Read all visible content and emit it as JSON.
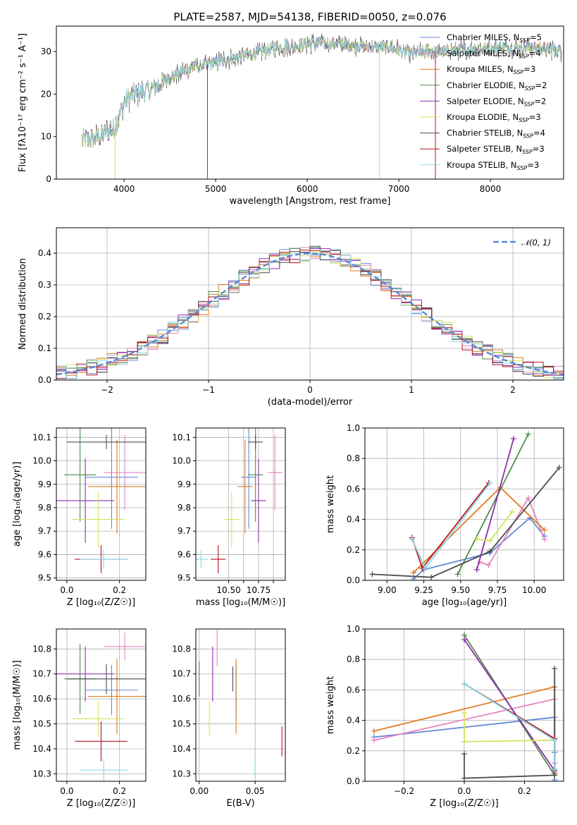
{
  "colors": [
    "#6289d6",
    "#e685c0",
    "#e07b20",
    "#4f8c4f",
    "#8f2dad",
    "#d2e25b",
    "#4d4d4d",
    "#b8141b",
    "#8ad7e6"
  ],
  "panels": {
    "spectrum": {
      "title": "PLATE=2587, MJD=54138, FIBERID=0050, z=0.076",
      "xlabel": "wavelength [Angstrom, rest frame]",
      "ylabel": "Flux [fλ10⁻¹⁷ erg cm⁻² s⁻¹ A⁻¹]",
      "xlim": [
        3260,
        8800
      ],
      "ylim": [
        0,
        36
      ],
      "xticks": [
        4000,
        5000,
        6000,
        7000,
        8000
      ],
      "yticks": [
        0,
        10,
        20,
        30
      ],
      "legend": [
        {
          "base": "Chabrier MILES, N",
          "sub": "SSP",
          "tail": "=5"
        },
        {
          "base": "Salpeter MILES, N",
          "sub": "SSP",
          "tail": "=4"
        },
        {
          "base": "Kroupa MILES, N",
          "sub": "SSP",
          "tail": "=3"
        },
        {
          "base": "Chabrier ELODIE, N",
          "sub": "SSP",
          "tail": "=2"
        },
        {
          "base": "Salpeter ELODIE, N",
          "sub": "SSP",
          "tail": "=2"
        },
        {
          "base": "Kroupa ELODIE, N",
          "sub": "SSP",
          "tail": "=3"
        },
        {
          "base": "Chabrier STELIB, N",
          "sub": "SSP",
          "tail": "=4"
        },
        {
          "base": "Salpeter STELIB, N",
          "sub": "SSP",
          "tail": "=3"
        },
        {
          "base": "Kroupa STELIB, N",
          "sub": "SSP",
          "tail": "=3"
        }
      ],
      "continuum": [
        [
          3540,
          9.5
        ],
        [
          3700,
          9.5
        ],
        [
          3800,
          11
        ],
        [
          3900,
          12
        ],
        [
          4000,
          18
        ],
        [
          4100,
          20
        ],
        [
          4300,
          21
        ],
        [
          4500,
          24
        ],
        [
          4700,
          26
        ],
        [
          4900,
          27
        ],
        [
          5100,
          28
        ],
        [
          5300,
          29
        ],
        [
          5500,
          30
        ],
        [
          5700,
          31
        ],
        [
          5900,
          31.5
        ],
        [
          6100,
          32
        ],
        [
          6300,
          32
        ],
        [
          6500,
          31.5
        ],
        [
          6700,
          31
        ],
        [
          6900,
          31
        ],
        [
          7100,
          29.5
        ],
        [
          7300,
          30
        ],
        [
          7500,
          30
        ],
        [
          7700,
          30.5
        ],
        [
          7900,
          30.5
        ],
        [
          8100,
          31
        ],
        [
          8300,
          31
        ],
        [
          8500,
          30.8
        ],
        [
          8700,
          30.5
        ],
        [
          8770,
          30
        ]
      ]
    },
    "histogram": {
      "xlabel": "(data-model)/error",
      "ylabel": "Normed distribution",
      "xlim": [
        -2.5,
        2.5
      ],
      "ylim": [
        0,
        0.48
      ],
      "xticks": [
        -2,
        -1,
        0,
        1,
        2
      ],
      "yticks": [
        0.0,
        0.1,
        0.2,
        0.3,
        0.4
      ],
      "bin_width": 0.1,
      "legend": "𝒩(0, 1)"
    },
    "z_age": {
      "xlabel": "Z [log₁₀(Z/Z☉)]",
      "ylabel": "age  [log₁₀(age/yr)]",
      "xlim": [
        -0.04,
        0.3
      ],
      "ylim": [
        9.49,
        10.14
      ],
      "xticks": [
        0.0,
        0.2
      ],
      "yticks": [
        9.5,
        9.6,
        9.7,
        9.8,
        9.9,
        10.0,
        10.1
      ]
    },
    "mass_age": {
      "xlabel": "mass [log₁₀(M/M☉)]",
      "ylabel": "",
      "xlim": [
        10.28,
        10.88
      ],
      "ylim": [
        9.49,
        10.14
      ],
      "xticks": [
        10.5,
        10.6,
        10.7,
        10.8
      ],
      "xtick_labels": [
        "10.50",
        "",
        "10.75",
        ""
      ],
      "yticks": [
        9.5,
        9.6,
        9.7,
        9.8,
        9.9,
        10.0,
        10.1
      ]
    },
    "age_weight": {
      "xlabel": "age  [log₁₀(age/yr)]",
      "ylabel": "mass weight",
      "xlim": [
        8.85,
        10.2
      ],
      "ylim": [
        0,
        1
      ],
      "xticks": [
        9.0,
        9.25,
        9.5,
        9.75,
        10.0
      ],
      "yticks": [
        0.0,
        0.2,
        0.4,
        0.6,
        0.8,
        1.0
      ]
    },
    "z_mass": {
      "xlabel": "Z [log₁₀(Z/Z☉)]",
      "ylabel": "mass [log₁₀(M/M☉)]",
      "xlim": [
        -0.04,
        0.3
      ],
      "ylim": [
        10.27,
        10.88
      ],
      "xticks": [
        0.0,
        0.2
      ],
      "yticks": [
        10.3,
        10.4,
        10.5,
        10.6,
        10.7,
        10.8
      ]
    },
    "ebv_mass": {
      "xlabel": "E(B-V)",
      "ylabel": "",
      "xlim": [
        -0.003,
        0.077
      ],
      "ylim": [
        10.27,
        10.88
      ],
      "xticks": [
        0.0,
        0.05
      ],
      "yticks": [
        10.3,
        10.4,
        10.5,
        10.6,
        10.7,
        10.8
      ]
    },
    "z_weight": {
      "xlabel": "Z [log₁₀(Z/Z☉)]",
      "ylabel": "mass weight",
      "xlim": [
        -0.33,
        0.33
      ],
      "ylim": [
        0,
        1
      ],
      "xticks": [
        -0.2,
        0.0,
        0.2
      ],
      "yticks": [
        0.0,
        0.2,
        0.4,
        0.6,
        0.8,
        1.0
      ]
    }
  },
  "chart_data": [
    {
      "type": "line",
      "panel": "spectrum",
      "title": "PLATE=2587, MJD=54138, FIBERID=0050, z=0.076",
      "xlabel": "wavelength [Angstrom, rest frame]",
      "series_names": [
        "Chabrier MILES, NSSP=5",
        "Salpeter MILES, NSSP=4",
        "Kroupa MILES, NSSP=3",
        "Chabrier ELODIE, NSSP=2",
        "Salpeter ELODIE, NSSP=2",
        "Kroupa ELODIE, NSSP=3",
        "Chabrier STELIB, NSSP=4",
        "Salpeter STELIB, NSSP=3",
        "Kroupa STELIB, NSSP=3"
      ]
    },
    {
      "type": "bar",
      "panel": "histogram",
      "xlabel": "(data-model)/error",
      "ylabel": "Normed distribution"
    },
    {
      "type": "scatter",
      "panel": "fit_parameters",
      "series": [
        {
          "Z": 0.17,
          "Z_err": 0.1,
          "age": 9.93,
          "age_err": 0.22,
          "mass": 10.635,
          "mass_err": 0.1,
          "ebv": 0.033,
          "ebv_err_mass": 0.11
        },
        {
          "Z": 0.22,
          "Z_err": 0.08,
          "age": 9.95,
          "age_err": 0.16,
          "mass": 10.81,
          "mass_err": 0.055,
          "ebv": 0.016,
          "ebv_err_mass": 0.08
        },
        {
          "Z": 0.19,
          "Z_err": 0.11,
          "age": 9.89,
          "age_err": 0.2,
          "mass": 10.61,
          "mass_err": 0.15,
          "ebv": 0.033,
          "ebv_err_mass": 0.15
        },
        {
          "Z": 0.05,
          "Z_err": 0.06,
          "age": 9.94,
          "age_err": 0.2,
          "mass": 10.68,
          "mass_err": 0.14,
          "ebv": 0.0,
          "ebv_err_mass": 0.07
        },
        {
          "Z": 0.07,
          "Z_err": 0.11,
          "age": 9.83,
          "age_err": 0.18,
          "mass": 10.7,
          "mass_err": 0.11,
          "ebv": 0.012,
          "ebv_err_mass": 0.11
        },
        {
          "Z": 0.12,
          "Z_err": 0.1,
          "age": 9.75,
          "age_err": 0.12,
          "mass": 10.52,
          "mass_err": 0.07,
          "ebv": 0.009,
          "ebv_err_mass": 0.07
        },
        {
          "Z": 0.15,
          "Z_err": 0.15,
          "age": 10.08,
          "age_err": 0.03,
          "mass": 10.68,
          "mass_err": 0.06,
          "ebv": 0.03,
          "ebv_err_mass": 0.05
        },
        {
          "Z": 0.13,
          "Z_err": 0.1,
          "age": 9.58,
          "age_err": 0.06,
          "mass": 10.43,
          "mass_err": 0.08,
          "ebv": 0.074,
          "ebv_err_mass": 0.06
        },
        {
          "Z": 0.14,
          "Z_err": 0.09,
          "age": 9.58,
          "age_err": 0.04,
          "mass": 10.315,
          "mass_err": 0.045,
          "ebv": 0.05,
          "ebv_err_mass": 0.06
        }
      ]
    },
    {
      "type": "line",
      "panel": "age_weight",
      "xlabel": "age  [log₁₀(age/yr)]",
      "ylabel": "mass weight",
      "series": [
        [
          [
            9.18,
            0.01
          ],
          [
            9.25,
            0.07
          ],
          [
            9.7,
            0.18
          ],
          [
            9.97,
            0.41
          ],
          [
            10.07,
            0.29
          ]
        ],
        [
          [
            9.63,
            0.12
          ],
          [
            9.69,
            0.1
          ],
          [
            9.96,
            0.54
          ],
          [
            10.07,
            0.27
          ]
        ],
        [
          [
            9.18,
            0.05
          ],
          [
            9.77,
            0.61
          ],
          [
            10.07,
            0.33
          ]
        ],
        [
          [
            9.48,
            0.04
          ],
          [
            9.96,
            0.96
          ]
        ],
        [
          [
            9.61,
            0.07
          ],
          [
            9.86,
            0.93
          ]
        ],
        [
          [
            9.61,
            0.27
          ],
          [
            9.7,
            0.26
          ],
          [
            9.85,
            0.45
          ]
        ],
        [
          [
            8.9,
            0.04
          ],
          [
            9.3,
            0.02
          ],
          [
            9.7,
            0.19
          ],
          [
            10.17,
            0.74
          ]
        ],
        [
          [
            9.17,
            0.28
          ],
          [
            9.24,
            0.08
          ],
          [
            9.69,
            0.64
          ]
        ],
        [
          [
            9.17,
            0.27
          ],
          [
            9.26,
            0.08
          ],
          [
            9.7,
            0.64
          ]
        ]
      ]
    },
    {
      "type": "line",
      "panel": "z_weight",
      "xlabel": "Z [log₁₀(Z/Z☉)]",
      "ylabel": "mass weight",
      "series": [
        [
          [
            -0.3,
            0.29
          ],
          [
            0.3,
            0.42
          ],
          [
            0.3,
            0.28
          ],
          [
            0.3,
            0.19
          ],
          [
            0.3,
            0.01
          ]
        ],
        [
          [
            -0.3,
            0.27
          ],
          [
            0.3,
            0.54
          ],
          [
            0.3,
            0.12
          ],
          [
            0.3,
            0.06
          ]
        ],
        [
          [
            -0.3,
            0.33
          ],
          [
            0.3,
            0.62
          ],
          [
            0.3,
            0.05
          ]
        ],
        [
          [
            0.0,
            0.96
          ],
          [
            0.3,
            0.04
          ]
        ],
        [
          [
            0.0,
            0.93
          ],
          [
            0.3,
            0.07
          ]
        ],
        [
          [
            0.0,
            0.45
          ],
          [
            0.0,
            0.26
          ],
          [
            0.3,
            0.27
          ]
        ],
        [
          [
            0.0,
            0.18
          ],
          [
            0.0,
            0.02
          ],
          [
            0.3,
            0.04
          ],
          [
            0.3,
            0.74
          ]
        ],
        [
          [
            0.0,
            0.64
          ],
          [
            0.3,
            0.28
          ],
          [
            0.3,
            0.08
          ]
        ],
        [
          [
            0.0,
            0.64
          ],
          [
            0.3,
            0.27
          ],
          [
            0.3,
            0.08
          ]
        ]
      ]
    }
  ]
}
